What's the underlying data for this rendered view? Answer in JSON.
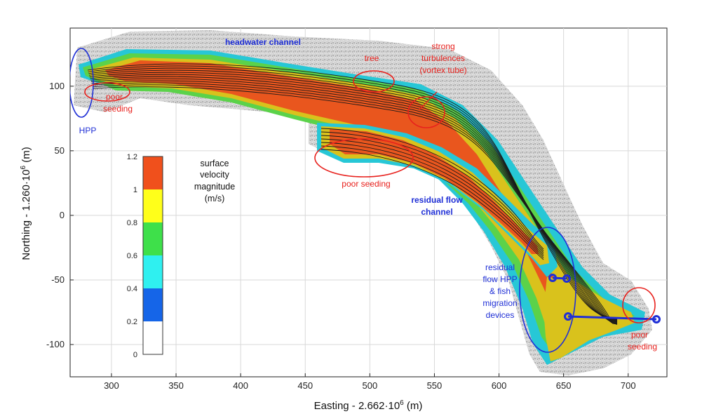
{
  "chart_data": {
    "type": "heatmap",
    "title": "",
    "xlabel_text": "Easting - 2.662·10",
    "xlabel_exp": "6",
    "xlabel_unit": " (m)",
    "ylabel_text": "Northing - 1.260·10",
    "ylabel_exp": "6",
    "ylabel_unit": " (m)",
    "xlim": [
      268,
      730
    ],
    "ylim": [
      -125,
      145
    ],
    "xticks": [
      300,
      350,
      400,
      450,
      500,
      550,
      600,
      650,
      700
    ],
    "yticks": [
      100,
      50,
      0,
      -50,
      -100
    ],
    "xtick_labels": [
      "300",
      "350",
      "400",
      "450",
      "500",
      "550",
      "600",
      "650",
      "700"
    ],
    "ytick_labels": [
      "100",
      "50",
      "0",
      "-50",
      "-100"
    ],
    "grid": true,
    "colorbar": {
      "label_lines": [
        "surface",
        "velocity",
        "magnitude",
        "(m/s)"
      ],
      "range": [
        0,
        1.2
      ],
      "tick_labels": [
        "1.2",
        "1",
        "0.8",
        "0.6",
        "0.4",
        "0.2",
        "0"
      ],
      "bins": [
        {
          "from": 0.0,
          "to": 0.2,
          "color": "#ffffff"
        },
        {
          "from": 0.2,
          "to": 0.4,
          "color": "#1565e8"
        },
        {
          "from": 0.4,
          "to": 0.6,
          "color": "#2ff0f0"
        },
        {
          "from": 0.6,
          "to": 0.8,
          "color": "#3ee04a"
        },
        {
          "from": 0.8,
          "to": 1.0,
          "color": "#ffff1a"
        },
        {
          "from": 1.0,
          "to": 1.2,
          "color": "#f0501c"
        }
      ]
    },
    "colors": {
      "high": "#e9561e",
      "mid_high": "#d9c21c",
      "mid": "#5bd24a",
      "low": "#27c7d6",
      "annotation_red": "#e8211d",
      "annotation_blue": "#1f2fd6",
      "background_terrain": "#c9c9c9"
    },
    "annotations": [
      {
        "id": "headwater",
        "lines": [
          "headwater channel"
        ],
        "color": "blue",
        "bold": true
      },
      {
        "id": "hpp",
        "lines": [
          "HPP"
        ],
        "color": "blue",
        "bold": false
      },
      {
        "id": "poor1",
        "lines": [
          "poor",
          "seeding"
        ],
        "color": "red",
        "bold": false
      },
      {
        "id": "tree",
        "lines": [
          "tree"
        ],
        "color": "red",
        "bold": false
      },
      {
        "id": "turb",
        "lines": [
          "strong",
          "turbulences",
          "(vortex tube)"
        ],
        "color": "red",
        "bold": false
      },
      {
        "id": "poor2",
        "lines": [
          "poor seeding"
        ],
        "color": "red",
        "bold": false
      },
      {
        "id": "residual",
        "lines": [
          "residual flow",
          "channel"
        ],
        "color": "blue",
        "bold": true
      },
      {
        "id": "rhpp",
        "lines": [
          "residual",
          "flow HPP",
          "& fish",
          "migration",
          "devices"
        ],
        "color": "blue",
        "bold": false
      },
      {
        "id": "poor3",
        "lines": [
          "poor",
          "seeding"
        ],
        "color": "red",
        "bold": false
      }
    ]
  }
}
